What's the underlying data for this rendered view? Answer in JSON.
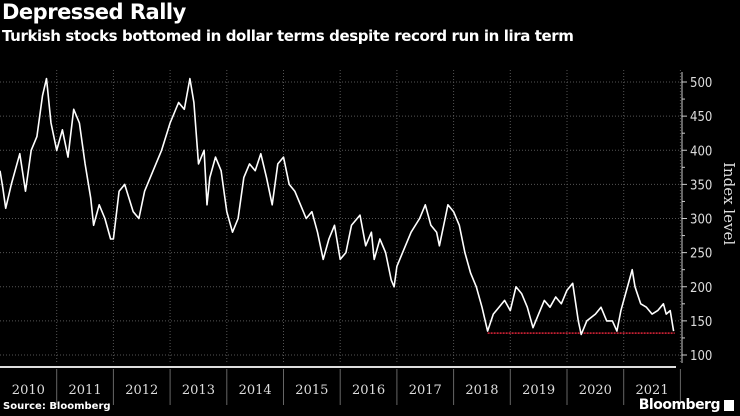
{
  "header": {
    "title": "Depressed Rally",
    "subtitle": "Turkish stocks bottomed in dollar terms despite record run in lira term"
  },
  "footer": {
    "source": "Source: Bloomberg",
    "logo": "Bloomberg"
  },
  "colors": {
    "background": "#000000",
    "line": "#ffffff",
    "support": "#e0243a",
    "grid": "#555555"
  },
  "chart_data": {
    "type": "line",
    "title": "Depressed Rally",
    "subtitle": "Turkish stocks bottomed in dollar terms despite record run in lira term",
    "xlabel": "",
    "ylabel": "Index level",
    "ylim": [
      92,
      540
    ],
    "xlim": [
      2010,
      2022.1
    ],
    "yticks": [
      100,
      150,
      200,
      250,
      300,
      350,
      400,
      450,
      500
    ],
    "xtick_labels": [
      "2010",
      "2011",
      "2012",
      "2013",
      "2014",
      "2015",
      "2016",
      "2017",
      "2018",
      "2019",
      "2020",
      "2021"
    ],
    "grid": true,
    "series": [
      {
        "name": "Index level",
        "x": [
          2010.0,
          2010.05,
          2010.1,
          2010.2,
          2010.35,
          2010.45,
          2010.55,
          2010.65,
          2010.75,
          2010.82,
          2010.9,
          2011.0,
          2011.1,
          2011.2,
          2011.3,
          2011.4,
          2011.5,
          2011.6,
          2011.65,
          2011.75,
          2011.85,
          2011.95,
          2012.0,
          2012.1,
          2012.2,
          2012.35,
          2012.45,
          2012.55,
          2012.7,
          2012.85,
          2013.0,
          2013.15,
          2013.25,
          2013.35,
          2013.42,
          2013.5,
          2013.6,
          2013.65,
          2013.7,
          2013.8,
          2013.9,
          2014.0,
          2014.1,
          2014.2,
          2014.3,
          2014.4,
          2014.5,
          2014.6,
          2014.7,
          2014.8,
          2014.9,
          2015.0,
          2015.1,
          2015.2,
          2015.3,
          2015.4,
          2015.5,
          2015.6,
          2015.7,
          2015.8,
          2015.9,
          2016.0,
          2016.1,
          2016.2,
          2016.35,
          2016.45,
          2016.55,
          2016.6,
          2016.7,
          2016.8,
          2016.9,
          2016.95,
          2017.0,
          2017.1,
          2017.25,
          2017.4,
          2017.5,
          2017.6,
          2017.7,
          2017.75,
          2017.85,
          2017.9,
          2018.0,
          2018.1,
          2018.2,
          2018.3,
          2018.4,
          2018.5,
          2018.6,
          2018.7,
          2018.8,
          2018.9,
          2019.0,
          2019.1,
          2019.2,
          2019.3,
          2019.4,
          2019.5,
          2019.6,
          2019.7,
          2019.8,
          2019.9,
          2020.0,
          2020.1,
          2020.2,
          2020.25,
          2020.35,
          2020.5,
          2020.6,
          2020.7,
          2020.8,
          2020.88,
          2020.95,
          2021.0,
          2021.1,
          2021.15,
          2021.2,
          2021.3,
          2021.4,
          2021.5,
          2021.6,
          2021.7,
          2021.75,
          2021.82,
          2021.88
        ],
        "values": [
          370,
          345,
          315,
          350,
          395,
          340,
          400,
          420,
          480,
          505,
          440,
          400,
          430,
          390,
          460,
          440,
          380,
          330,
          290,
          320,
          300,
          270,
          270,
          340,
          350,
          310,
          300,
          340,
          370,
          400,
          440,
          470,
          460,
          505,
          470,
          380,
          400,
          320,
          360,
          390,
          370,
          310,
          280,
          300,
          360,
          380,
          370,
          395,
          360,
          320,
          380,
          390,
          350,
          340,
          320,
          300,
          310,
          280,
          240,
          270,
          290,
          240,
          250,
          290,
          305,
          260,
          280,
          240,
          270,
          250,
          210,
          200,
          230,
          250,
          280,
          300,
          320,
          290,
          280,
          260,
          300,
          320,
          310,
          290,
          250,
          220,
          200,
          170,
          135,
          160,
          170,
          180,
          165,
          200,
          190,
          170,
          140,
          160,
          180,
          170,
          185,
          175,
          195,
          205,
          150,
          130,
          150,
          160,
          170,
          150,
          150,
          135,
          165,
          180,
          210,
          225,
          200,
          175,
          170,
          160,
          165,
          175,
          160,
          165,
          135
        ]
      }
    ],
    "annotations": [
      {
        "type": "horizontal-line",
        "label": "",
        "value": 132,
        "x_from": 2018.6,
        "x_to": 2021.9
      }
    ]
  }
}
